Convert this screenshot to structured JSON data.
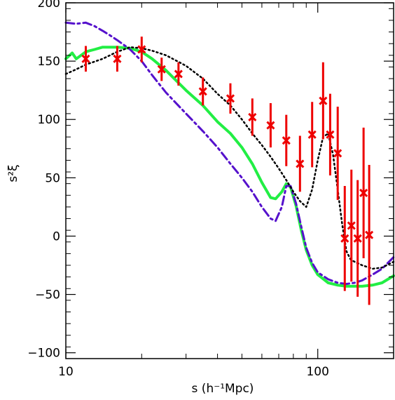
{
  "chart_data": {
    "type": "line",
    "xscale": "log",
    "xlim": [
      10,
      200
    ],
    "ylim": [
      -105,
      200
    ],
    "xlabel": "s (h⁻¹Mpc)",
    "ylabel": "s²ξ",
    "x_ticks_major": [
      10,
      100
    ],
    "y_ticks": [
      -100,
      -50,
      0,
      50,
      100,
      150,
      200
    ],
    "grid": false,
    "series": [
      {
        "style": "solid",
        "color": "#22ee44",
        "x": [
          10,
          10.6,
          11,
          12,
          13,
          14,
          16,
          18,
          20,
          22,
          25,
          30,
          35,
          40,
          45,
          50,
          55,
          60,
          65,
          68,
          72,
          75,
          78,
          82,
          86,
          90,
          95,
          100,
          110,
          120,
          130,
          140,
          150,
          165,
          180,
          200
        ],
        "y": [
          152,
          157,
          152,
          158,
          160,
          162,
          162,
          161,
          158,
          152,
          142,
          125,
          112,
          98,
          88,
          76,
          62,
          46,
          33,
          32,
          38,
          45,
          42,
          26,
          5,
          -12,
          -25,
          -33,
          -40,
          -42,
          -43,
          -43,
          -43,
          -42,
          -40,
          -34
        ]
      },
      {
        "style": "dashdot",
        "color": "#5511cc",
        "x": [
          10,
          11,
          12,
          13,
          14,
          15,
          16,
          18,
          20,
          22,
          25,
          30,
          35,
          40,
          45,
          50,
          55,
          60,
          65,
          68,
          72,
          75,
          78,
          82,
          86,
          90,
          95,
          100,
          110,
          120,
          130,
          140,
          150,
          165,
          180,
          200
        ],
        "y": [
          183,
          182,
          183,
          180,
          176,
          172,
          168,
          160,
          150,
          138,
          123,
          105,
          90,
          76,
          62,
          50,
          38,
          25,
          15,
          13,
          25,
          43,
          43,
          28,
          8,
          -10,
          -23,
          -31,
          -37,
          -40,
          -41,
          -40,
          -38,
          -33,
          -28,
          -18
        ]
      },
      {
        "style": "dotted",
        "color": "#000000",
        "x": [
          10,
          11,
          12,
          14,
          16,
          18,
          20,
          22,
          25,
          30,
          35,
          40,
          45,
          50,
          55,
          60,
          65,
          70,
          75,
          80,
          85,
          90,
          95,
          100,
          105,
          110,
          115,
          120,
          125,
          130,
          135,
          140,
          150,
          165,
          180,
          200
        ],
        "y": [
          139,
          143,
          147,
          152,
          158,
          162,
          161,
          159,
          155,
          146,
          135,
          122,
          112,
          100,
          88,
          78,
          68,
          58,
          48,
          38,
          30,
          25,
          40,
          65,
          85,
          88,
          70,
          40,
          10,
          -13,
          -20,
          -22,
          -25,
          -28,
          -27,
          -22
        ]
      }
    ],
    "points": {
      "marker": "x",
      "color": "#ee0000",
      "x": [
        12,
        16,
        20,
        24,
        28,
        35,
        45,
        55,
        65,
        75,
        85,
        95,
        105,
        112,
        120,
        128,
        136,
        144,
        152,
        160
      ],
      "y": [
        152,
        152,
        160,
        143,
        139,
        124,
        118,
        102,
        95,
        82,
        62,
        87,
        116,
        87,
        71,
        -2,
        9,
        -2,
        37,
        1
      ],
      "yerr": [
        11,
        11,
        11,
        10,
        10,
        12,
        13,
        16,
        19,
        22,
        24,
        28,
        33,
        35,
        40,
        45,
        48,
        50,
        56,
        60
      ]
    }
  }
}
